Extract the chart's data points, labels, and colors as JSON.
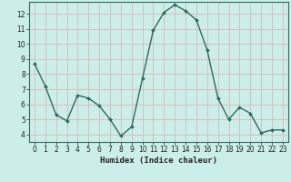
{
  "x": [
    0,
    1,
    2,
    3,
    4,
    5,
    6,
    7,
    8,
    9,
    10,
    11,
    12,
    13,
    14,
    15,
    16,
    17,
    18,
    19,
    20,
    21,
    22,
    23
  ],
  "y": [
    8.7,
    7.2,
    5.3,
    4.9,
    6.6,
    6.4,
    5.9,
    5.0,
    3.9,
    4.5,
    7.7,
    10.9,
    12.1,
    12.6,
    12.2,
    11.6,
    9.6,
    6.4,
    5.0,
    5.8,
    5.4,
    4.1,
    4.3,
    4.3
  ],
  "line_color": "#2d6b5e",
  "marker": "D",
  "marker_size": 2.0,
  "bg_color": "#cceee8",
  "grid_color": "#dab8b8",
  "xlabel": "Humidex (Indice chaleur)",
  "xlim": [
    -0.5,
    23.5
  ],
  "ylim": [
    3.5,
    12.8
  ],
  "yticks": [
    4,
    5,
    6,
    7,
    8,
    9,
    10,
    11,
    12
  ],
  "xticks": [
    0,
    1,
    2,
    3,
    4,
    5,
    6,
    7,
    8,
    9,
    10,
    11,
    12,
    13,
    14,
    15,
    16,
    17,
    18,
    19,
    20,
    21,
    22,
    23
  ],
  "font_color": "#222222",
  "axis_color": "#2d6b5e",
  "label_fontsize": 6.5,
  "tick_fontsize": 5.5
}
